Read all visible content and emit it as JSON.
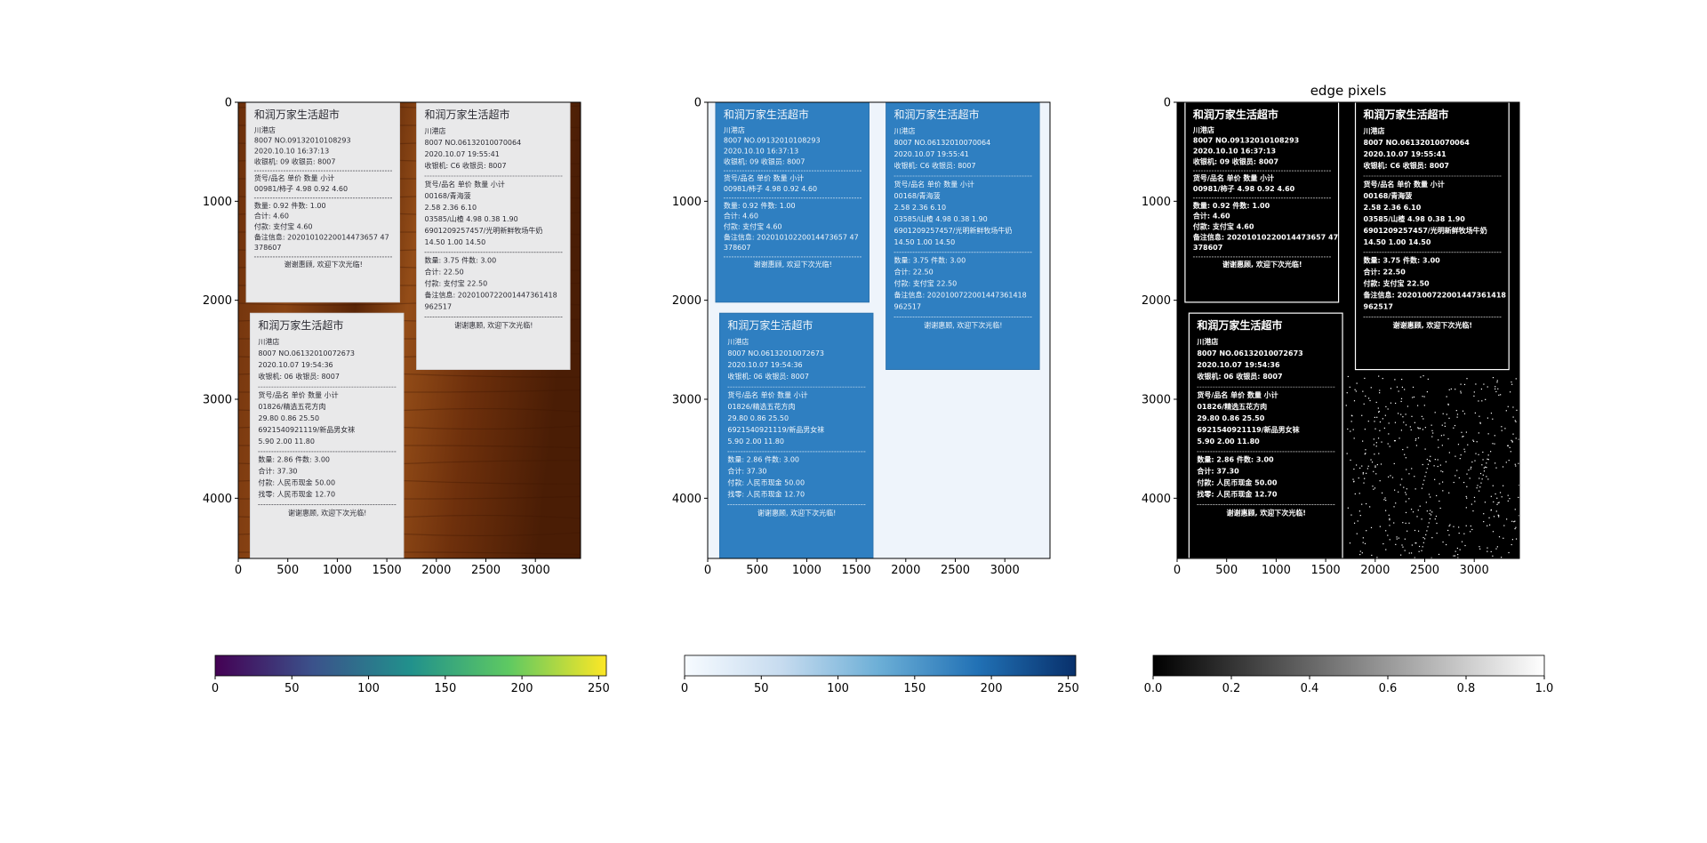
{
  "chart_data": [
    {
      "type": "image",
      "title": "",
      "image_extent": {
        "x": [
          0,
          3456
        ],
        "y": [
          4608,
          0
        ]
      },
      "colormap": "viridis",
      "xticks": [
        "0",
        "500",
        "1000",
        "1500",
        "2000",
        "2500",
        "3000"
      ],
      "yticks": [
        "0",
        "1000",
        "2000",
        "3000",
        "4000"
      ],
      "colorbar": {
        "range": [
          0,
          255
        ],
        "ticks": [
          "0",
          "50",
          "100",
          "150",
          "200",
          "250"
        ],
        "colors": [
          "#440154",
          "#3b528b",
          "#21918c",
          "#5ec962",
          "#fde725"
        ]
      },
      "receipts": [
        {
          "store": "和润万家生活超市",
          "branch": "川港店",
          "line1": "8007 NO.09132010108293",
          "date": "2020.10.10 16:37:13",
          "machine": "收银机: 09",
          "cashier": "收银员: 8007",
          "header": "货号/品名  单价  数量  小计",
          "items": [
            "00981/柿子  4.98  0.92  4.60"
          ],
          "summary": [
            "数量: 0.92 件数: 1.00",
            "合计: 4.60",
            "付款: 支付宝  4.60",
            "备注信息: 20201010220014473657 47",
            "378607"
          ],
          "footer": "谢谢惠顾, 欢迎下次光临!"
        },
        {
          "store": "和润万家生活超市",
          "branch": "川港店",
          "line1": "8007 NO.06132010070064",
          "date": "2020.10.07 19:55:41",
          "machine": "收银机: C6",
          "cashier": "收银员: 8007",
          "header": "货号/品名  单价  数量  小计",
          "items": [
            "00168/青海菠",
            "2.58  2.36  6.10",
            "03585/山楂  4.98  0.38  1.90",
            "6901209257457/光明新鲜牧场牛奶",
            "14.50  1.00  14.50"
          ],
          "summary": [
            "数量: 3.75 件数: 3.00",
            "合计: 22.50",
            "付款: 支付宝  22.50",
            "备注信息: 2020100722001447361418",
            "962517"
          ],
          "footer": "谢谢惠顾, 欢迎下次光临!"
        },
        {
          "store": "和润万家生活超市",
          "branch": "川港店",
          "line1": "8007 NO.06132010072673",
          "date": "2020.10.07 19:54:36",
          "machine": "收银机: 06",
          "cashier": "收银员: 8007",
          "header": "货号/品名  单价  数量  小计",
          "items": [
            "01826/精选五花方肉",
            "29.80  0.86  25.50",
            "6921540921119/新品男女袜",
            "5.90  2.00  11.80"
          ],
          "summary": [
            "数量: 2.86 件数: 3.00",
            "合计: 37.30",
            "付款: 人民币现金  50.00",
            "找零: 人民币现金  12.70"
          ],
          "footer": "谢谢惠顾, 欢迎下次光临!"
        }
      ]
    },
    {
      "type": "image",
      "title": "",
      "image_extent": {
        "x": [
          0,
          3456
        ],
        "y": [
          4608,
          0
        ]
      },
      "colormap": "Blues",
      "xticks": [
        "0",
        "500",
        "1000",
        "1500",
        "2000",
        "2500",
        "3000"
      ],
      "yticks": [
        "0",
        "1000",
        "2000",
        "3000",
        "4000"
      ],
      "colorbar": {
        "range": [
          0,
          255
        ],
        "ticks": [
          "0",
          "50",
          "100",
          "150",
          "200",
          "250"
        ],
        "colors": [
          "#f7fbff",
          "#c6dbef",
          "#6baed6",
          "#2171b5",
          "#08306b"
        ]
      }
    },
    {
      "type": "image",
      "title": "edge pixels",
      "image_extent": {
        "x": [
          0,
          3456
        ],
        "y": [
          4608,
          0
        ]
      },
      "colormap": "gray",
      "xticks": [
        "0",
        "500",
        "1000",
        "1500",
        "2000",
        "2500",
        "3000"
      ],
      "yticks": [
        "0",
        "1000",
        "2000",
        "3000",
        "4000"
      ],
      "colorbar": {
        "range": [
          0.0,
          1.0
        ],
        "ticks": [
          "0.0",
          "0.2",
          "0.4",
          "0.6",
          "0.8",
          "1.0"
        ],
        "colors": [
          "#000000",
          "#ffffff"
        ]
      }
    }
  ]
}
